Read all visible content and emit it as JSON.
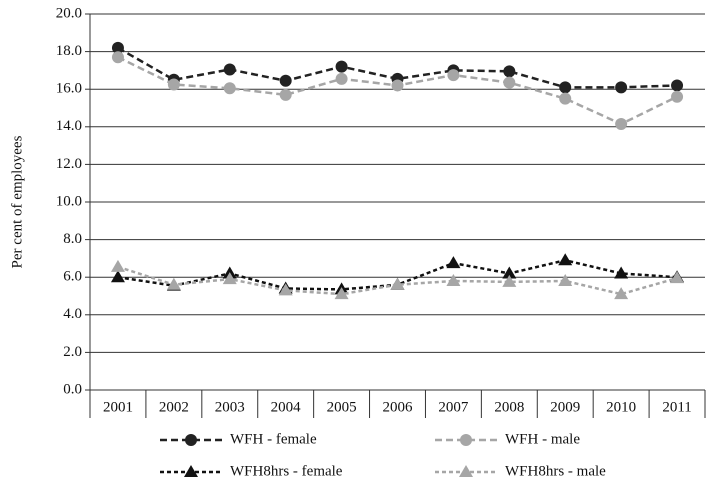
{
  "chart_data": {
    "type": "line",
    "y_label": "Per cent of employees",
    "categories": [
      "2001",
      "2002",
      "2003",
      "2004",
      "2005",
      "2006",
      "2007",
      "2008",
      "2009",
      "2010",
      "2011"
    ],
    "series": [
      {
        "name": "WFH - female",
        "color": "#222222",
        "marker": "circle",
        "values": [
          18.2,
          16.5,
          17.05,
          16.45,
          17.2,
          16.55,
          17.0,
          16.95,
          16.1,
          16.1,
          16.2
        ]
      },
      {
        "name": "WFH - male",
        "color": "#a6a6a6",
        "marker": "circle",
        "values": [
          17.7,
          16.25,
          16.05,
          15.7,
          16.55,
          16.2,
          16.75,
          16.35,
          15.5,
          14.15,
          15.6
        ]
      },
      {
        "name": "WFH8hrs - female",
        "color": "#111111",
        "marker": "triangle",
        "values": [
          6.0,
          5.55,
          6.2,
          5.4,
          5.35,
          5.6,
          6.75,
          6.2,
          6.9,
          6.2,
          6.0
        ]
      },
      {
        "name": "WFH8hrs - male",
        "color": "#a6a6a6",
        "marker": "triangle",
        "values": [
          6.55,
          5.6,
          5.9,
          5.3,
          5.1,
          5.6,
          5.8,
          5.75,
          5.8,
          5.1,
          5.95
        ]
      }
    ],
    "ylim": [
      0,
      20
    ],
    "yticks": [
      {
        "value": 0,
        "label": "0.0"
      },
      {
        "value": 2,
        "label": "2.0"
      },
      {
        "value": 4,
        "label": "4.0"
      },
      {
        "value": 6,
        "label": "6.0"
      },
      {
        "value": 8,
        "label": "8.0"
      },
      {
        "value": 10,
        "label": "10.0"
      },
      {
        "value": 12,
        "label": "12.0"
      },
      {
        "value": 14,
        "label": "14.0"
      },
      {
        "value": 16,
        "label": "16.0"
      },
      {
        "value": 18,
        "label": "18.0"
      },
      {
        "value": 20,
        "label": "20.0"
      }
    ],
    "grid": true
  }
}
